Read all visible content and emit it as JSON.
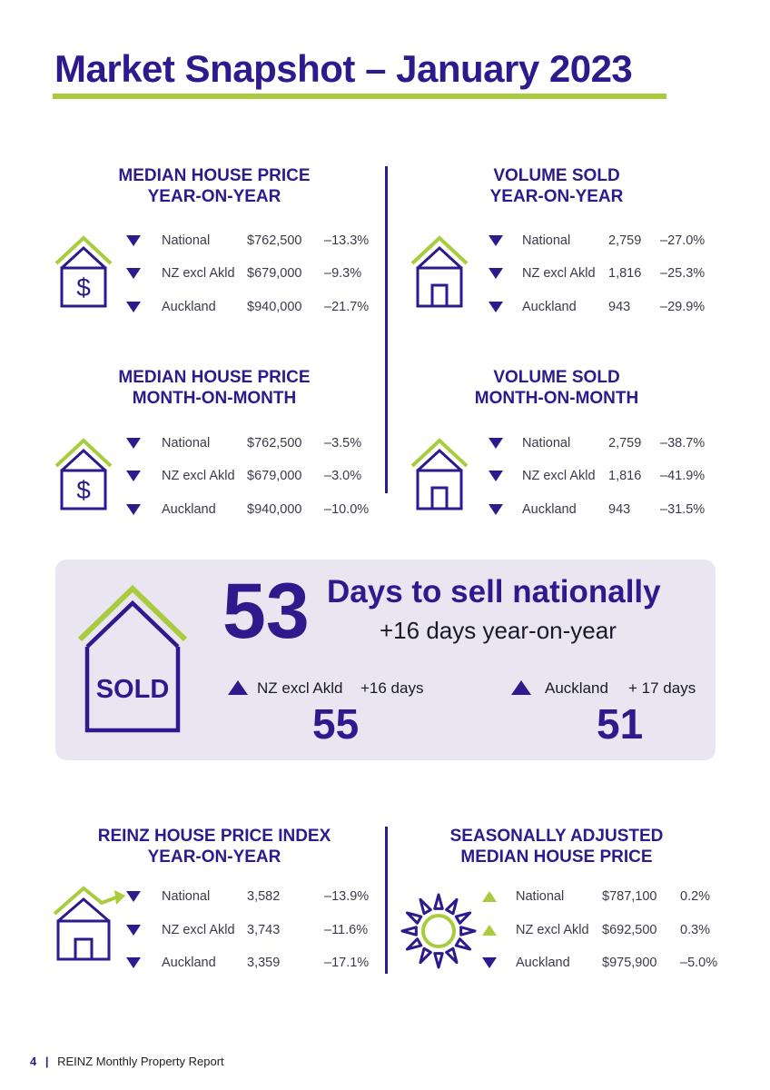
{
  "page": {
    "title": "Market Snapshot – January 2023"
  },
  "sections": {
    "price_yoy": {
      "title_line1": "MEDIAN HOUSE PRICE",
      "title_line2": "YEAR-ON-YEAR",
      "rows": [
        {
          "direction": "down",
          "region": "National",
          "value": "$762,500",
          "change": "–13.3%"
        },
        {
          "direction": "down",
          "region": "NZ excl Akld",
          "value": "$679,000",
          "change": "–9.3%"
        },
        {
          "direction": "down",
          "region": "Auckland",
          "value": "$940,000",
          "change": "–21.7%"
        }
      ]
    },
    "volume_yoy": {
      "title_line1": "VOLUME SOLD",
      "title_line2": "YEAR-ON-YEAR",
      "rows": [
        {
          "direction": "down",
          "region": "National",
          "value": "2,759",
          "change": "–27.0%"
        },
        {
          "direction": "down",
          "region": "NZ excl Akld",
          "value": "1,816",
          "change": "–25.3%"
        },
        {
          "direction": "down",
          "region": "Auckland",
          "value": "943",
          "change": "–29.9%"
        }
      ]
    },
    "price_mom": {
      "title_line1": "MEDIAN HOUSE PRICE",
      "title_line2": "MONTH-ON-MONTH",
      "rows": [
        {
          "direction": "down",
          "region": "National",
          "value": "$762,500",
          "change": "–3.5%"
        },
        {
          "direction": "down",
          "region": "NZ excl Akld",
          "value": "$679,000",
          "change": "–3.0%"
        },
        {
          "direction": "down",
          "region": "Auckland",
          "value": "$940,000",
          "change": "–10.0%"
        }
      ]
    },
    "volume_mom": {
      "title_line1": "VOLUME SOLD",
      "title_line2": "MONTH-ON-MONTH",
      "rows": [
        {
          "direction": "down",
          "region": "National",
          "value": "2,759",
          "change": "–38.7%"
        },
        {
          "direction": "down",
          "region": "NZ excl Akld",
          "value": "1,816",
          "change": "–41.9%"
        },
        {
          "direction": "down",
          "region": "Auckland",
          "value": "943",
          "change": "–31.5%"
        }
      ]
    },
    "hpi_yoy": {
      "title_line1": "REINZ HOUSE PRICE INDEX",
      "title_line2": "YEAR-ON-YEAR",
      "rows": [
        {
          "direction": "down",
          "region": "National",
          "value": "3,582",
          "change": "–13.9%"
        },
        {
          "direction": "down",
          "region": "NZ excl Akld",
          "value": "3,743",
          "change": "–11.6%"
        },
        {
          "direction": "down",
          "region": "Auckland",
          "value": "3,359",
          "change": "–17.1%"
        }
      ]
    },
    "seasonal": {
      "title_line1": "SEASONALLY ADJUSTED",
      "title_line2": "MEDIAN HOUSE PRICE",
      "rows": [
        {
          "direction": "up",
          "region": "National",
          "value": "$787,100",
          "change": "0.2%"
        },
        {
          "direction": "up",
          "region": "NZ excl Akld",
          "value": "$692,500",
          "change": "0.3%"
        },
        {
          "direction": "down",
          "region": "Auckland",
          "value": "$975,900",
          "change": "–5.0%"
        }
      ]
    }
  },
  "days_to_sell": {
    "sold_label": "SOLD",
    "national_days": "53",
    "headline": "Days to sell nationally",
    "sub": "+16 days year-on-year",
    "nz_excl": {
      "direction": "up",
      "label": "NZ excl Akld",
      "change": "+16 days",
      "days": "55"
    },
    "auckland": {
      "direction": "up",
      "label": "Auckland",
      "change": "+ 17 days",
      "days": "51"
    }
  },
  "footer": {
    "page_number": "4",
    "separator": "|",
    "report_name": "REINZ Monthly Property Report"
  },
  "colors": {
    "primary": "#2e1a8c",
    "accent": "#a9cc3e",
    "panel": "#e9e6f2"
  },
  "icons": {
    "price": "house-dollar-icon",
    "volume": "house-icon",
    "hpi": "house-growth-icon",
    "seasonal": "sun-icon",
    "sold": "house-sold-icon",
    "down": "triangle-down-icon",
    "up": "triangle-up-icon"
  }
}
